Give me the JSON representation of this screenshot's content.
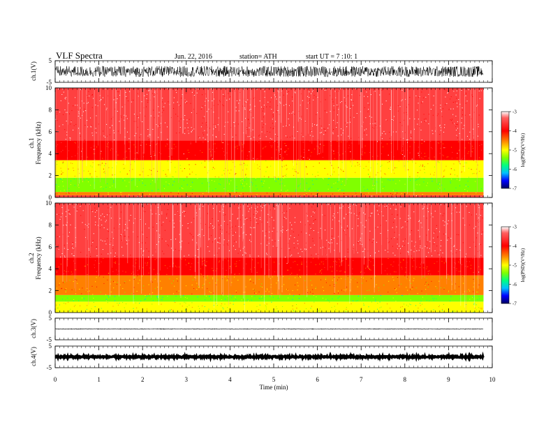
{
  "header": {
    "title": "VLF Spectra",
    "date": "Jun. 22, 2016",
    "station": "station= ATH",
    "start_ut": "start UT = 7 :10: 1"
  },
  "chart_data": [
    {
      "type": "line",
      "panel": "ch1-waveform",
      "ylabel": "ch.1(V)",
      "ylim": [
        -5,
        5
      ],
      "yticks": [
        "5",
        "-5"
      ],
      "x_range_min": [
        0,
        9.8
      ],
      "amplitude_approx_V": 2.5
    },
    {
      "type": "heatmap",
      "panel": "ch1-spectrogram",
      "ylabel_line1": "ch.1",
      "ylabel_line2": "Frequency (kHz)",
      "ylim": [
        0,
        10
      ],
      "yticks": [
        "0",
        "2",
        "4",
        "6",
        "8",
        "10"
      ],
      "bands_kHz_logPSD": [
        {
          "from": 0.0,
          "to": 0.2,
          "level": -3.5
        },
        {
          "from": 0.2,
          "to": 0.5,
          "level": -4.4
        },
        {
          "from": 0.5,
          "to": 1.8,
          "level": -5.3
        },
        {
          "from": 1.8,
          "to": 3.4,
          "level": -4.6
        },
        {
          "from": 3.4,
          "to": 5.2,
          "level": -3.8
        },
        {
          "from": 5.2,
          "to": 10.0,
          "level": -3.3
        }
      ],
      "colorbar": {
        "label": "log(PSD)(V²/Hz)",
        "ticks": [
          "-3",
          "-4",
          "-5",
          "-6",
          "-7"
        ],
        "range": [
          -7,
          -3
        ]
      }
    },
    {
      "type": "heatmap",
      "panel": "ch2-spectrogram",
      "ylabel_line1": "ch.2",
      "ylabel_line2": "Frequency (kHz)",
      "ylim": [
        0,
        10
      ],
      "yticks": [
        "0",
        "2",
        "4",
        "6",
        "8",
        "10"
      ],
      "bands_kHz_logPSD": [
        {
          "from": 0.0,
          "to": 1.0,
          "level": -5.0
        },
        {
          "from": 1.0,
          "to": 1.6,
          "level": -5.4
        },
        {
          "from": 1.6,
          "to": 3.4,
          "level": -4.5
        },
        {
          "from": 3.4,
          "to": 5.0,
          "level": -3.9
        },
        {
          "from": 5.0,
          "to": 10.0,
          "level": -3.3
        }
      ],
      "colorbar": {
        "label": "log(PSD)(V²/Hz)",
        "ticks": [
          "-3",
          "-4",
          "-5",
          "-6",
          "-7"
        ],
        "range": [
          -7,
          -3
        ]
      }
    },
    {
      "type": "line",
      "panel": "ch3-waveform",
      "ylabel": "ch.3(V)",
      "ylim": [
        -5,
        5
      ],
      "yticks": [
        "5",
        "-5"
      ],
      "level_V": 0
    },
    {
      "type": "line",
      "panel": "ch4-waveform",
      "ylabel": "ch.4(V)",
      "ylim": [
        -5,
        5
      ],
      "yticks": [
        "5",
        "-5"
      ],
      "level_V": 0
    }
  ],
  "x_axis": {
    "label": "Time (min)",
    "range": [
      0,
      10
    ],
    "data_end_min": 9.8,
    "ticks": [
      "0",
      "1",
      "2",
      "3",
      "4",
      "5",
      "6",
      "7",
      "8",
      "9",
      "10"
    ]
  },
  "colors": {
    "scale": [
      "#000080",
      "#0000ff",
      "#00c0ff",
      "#00ff80",
      "#80ff00",
      "#ffff00",
      "#ff8000",
      "#ff0000",
      "#ff4040",
      "#ffffff"
    ]
  }
}
